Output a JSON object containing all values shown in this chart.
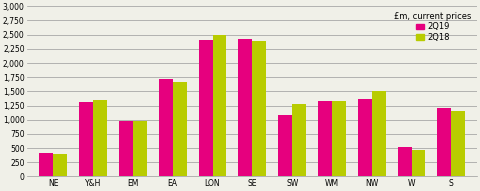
{
  "categories": [
    "NE",
    "Y&H",
    "EM",
    "EA",
    "LON",
    "SE",
    "SW",
    "WM",
    "NW",
    "W",
    "S"
  ],
  "values_2Q19": [
    420,
    1320,
    975,
    1720,
    2400,
    2420,
    1090,
    1330,
    1370,
    520,
    1200
  ],
  "values_2Q18": [
    400,
    1340,
    975,
    1670,
    2490,
    2380,
    1270,
    1330,
    1510,
    460,
    1160
  ],
  "color_2Q19": "#e6007e",
  "color_2Q18": "#b8cc00",
  "legend_title": "£m, current prices",
  "legend_labels": [
    "2Q19",
    "2Q18"
  ],
  "ylim": [
    0,
    3000
  ],
  "yticks": [
    0,
    250,
    500,
    750,
    1000,
    1250,
    1500,
    1750,
    2000,
    2250,
    2500,
    2750,
    3000
  ],
  "ytick_labels": [
    "0",
    "250",
    "500",
    "750",
    "1,000",
    "1,250",
    "1,500",
    "1,750",
    "2,000",
    "2,250",
    "2,500",
    "2,750",
    "3,000"
  ],
  "background_color": "#f0f0e8",
  "bar_width": 0.35,
  "grid_color": "#999999",
  "tick_fontsize": 5.5,
  "legend_fontsize": 6.0,
  "legend_title_fontsize": 6.0
}
